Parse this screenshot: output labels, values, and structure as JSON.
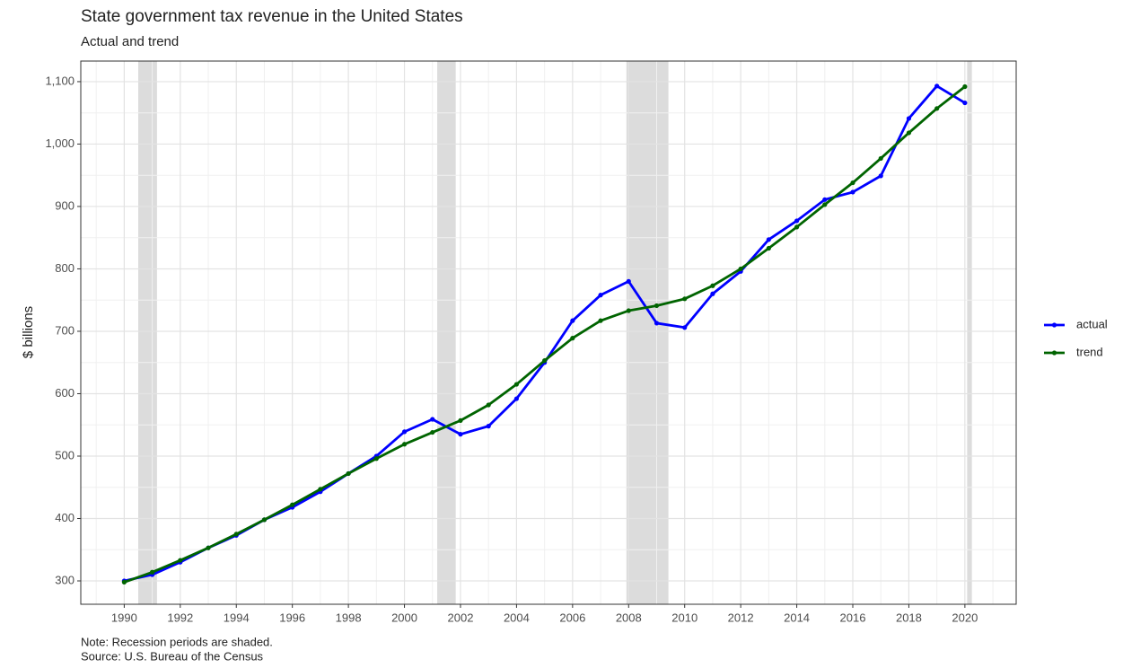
{
  "chart_data": {
    "type": "line",
    "title": "State government tax revenue in the United States",
    "subtitle": "Actual and trend",
    "y_label": "$ billions",
    "notes": [
      "Note: Recession periods are shaded.",
      "Source: U.S. Bureau of the Census"
    ],
    "x": [
      1990,
      1991,
      1992,
      1993,
      1994,
      1995,
      1996,
      1997,
      1998,
      1999,
      2000,
      2001,
      2002,
      2003,
      2004,
      2005,
      2006,
      2007,
      2008,
      2009,
      2010,
      2011,
      2012,
      2013,
      2014,
      2015,
      2016,
      2017,
      2018,
      2019,
      2020
    ],
    "series": [
      {
        "name": "actual",
        "color": "#0000ff",
        "values": [
          300,
          310,
          330,
          353,
          373,
          398,
          418,
          443,
          472,
          500,
          539,
          559,
          535,
          548,
          592,
          650,
          717,
          758,
          780,
          713,
          706,
          760,
          796,
          847,
          877,
          911,
          923,
          949,
          1041,
          1093,
          1066
        ]
      },
      {
        "name": "trend",
        "color": "#006400",
        "values": [
          298,
          314,
          333,
          353,
          375,
          398,
          422,
          447,
          472,
          496,
          519,
          538,
          557,
          582,
          615,
          653,
          689,
          717,
          733,
          741,
          752,
          773,
          800,
          833,
          867,
          903,
          938,
          977,
          1018,
          1057,
          1092
        ]
      }
    ],
    "shaded_periods": [
      [
        1990.5,
        1991.17
      ],
      [
        2001.17,
        2001.83
      ],
      [
        2007.92,
        2009.42
      ],
      [
        2020.08,
        2020.25
      ]
    ],
    "shade_color": "#dcdcdc",
    "xlim": [
      1988.45,
      2021.83
    ],
    "ylim": [
      262.6,
      1133
    ],
    "xticks": [
      1990,
      1992,
      1994,
      1996,
      1998,
      2000,
      2002,
      2004,
      2006,
      2008,
      2010,
      2012,
      2014,
      2016,
      2018,
      2020
    ],
    "minor_xticks": [
      1989,
      1991,
      1993,
      1995,
      1997,
      1999,
      2001,
      2003,
      2005,
      2007,
      2009,
      2011,
      2013,
      2015,
      2017,
      2019,
      2021
    ],
    "yticks": [
      300,
      400,
      500,
      600,
      700,
      800,
      900,
      {
        "value": 1000,
        "label": "1,000"
      },
      {
        "value": 1100,
        "label": "1,100"
      }
    ],
    "minor_yticks": [
      350,
      450,
      550,
      650,
      750,
      850,
      950,
      1050
    ],
    "grid": true,
    "legend_position": "right"
  }
}
